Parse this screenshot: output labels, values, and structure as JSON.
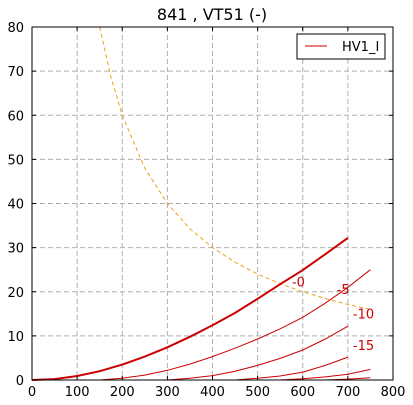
{
  "chart_data": {
    "type": "line",
    "title": "841 , VT51  (-)",
    "xlabel": "",
    "ylabel": "",
    "xlim": [
      0,
      800
    ],
    "ylim": [
      0,
      80
    ],
    "xticks": [
      0,
      100,
      200,
      300,
      400,
      500,
      600,
      700,
      800
    ],
    "yticks": [
      0,
      10,
      20,
      30,
      40,
      50,
      60,
      70,
      80
    ],
    "grid": true,
    "legend": {
      "position": "top-right",
      "entries": [
        "HV1_I"
      ]
    },
    "colors": {
      "curves": "#cc0000",
      "power_limit": "#e8a317",
      "grid": "#b0b0b0"
    },
    "series": [
      {
        "name": "HV1_I",
        "label": "-0",
        "x": [
          0,
          50,
          100,
          150,
          200,
          250,
          300,
          350,
          400,
          450,
          500,
          550,
          600,
          650,
          700
        ],
        "y": [
          0,
          0.2,
          0.9,
          2.0,
          3.5,
          5.3,
          7.4,
          9.8,
          12.4,
          15.2,
          18.4,
          21.7,
          24.9,
          28.5,
          32.2
        ]
      },
      {
        "name": "",
        "label": "-5",
        "x": [
          150,
          200,
          250,
          300,
          350,
          400,
          450,
          500,
          550,
          600,
          650,
          700,
          750
        ],
        "y": [
          0,
          0.4,
          1.1,
          2.2,
          3.6,
          5.3,
          7.2,
          9.3,
          11.6,
          14.2,
          17.4,
          21.0,
          25.0
        ]
      },
      {
        "name": "",
        "label": "-10",
        "x": [
          300,
          350,
          400,
          450,
          500,
          550,
          600,
          650,
          700
        ],
        "y": [
          0,
          0.4,
          1.0,
          2.0,
          3.3,
          4.9,
          6.8,
          9.3,
          12.2
        ]
      },
      {
        "name": "",
        "label": "-15",
        "x": [
          450,
          500,
          550,
          600,
          650,
          700
        ],
        "y": [
          0,
          0.4,
          0.9,
          1.8,
          3.3,
          5.2
        ]
      },
      {
        "name": "",
        "label": "",
        "x": [
          550,
          600,
          650,
          700,
          750
        ],
        "y": [
          0,
          0.3,
          0.7,
          1.3,
          2.4
        ]
      },
      {
        "name": "",
        "label": "",
        "x": [
          650,
          700,
          750
        ],
        "y": [
          0,
          0.2,
          0.5
        ]
      }
    ],
    "power_limit": {
      "x": [
        150,
        175,
        200,
        250,
        300,
        350,
        400,
        450,
        500,
        550,
        600,
        650,
        700,
        750
      ],
      "y": [
        80.0,
        68.6,
        60.0,
        48.0,
        40.0,
        34.3,
        30.0,
        26.7,
        24.0,
        21.8,
        20.0,
        18.5,
        17.1,
        16.0
      ]
    }
  }
}
